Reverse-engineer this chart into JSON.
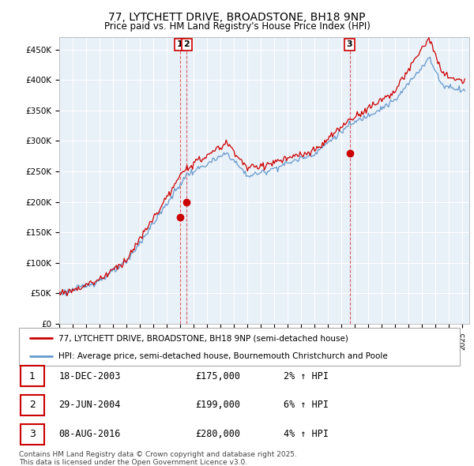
{
  "title": "77, LYTCHETT DRIVE, BROADSTONE, BH18 9NP",
  "subtitle": "Price paid vs. HM Land Registry's House Price Index (HPI)",
  "ylabel_ticks": [
    "£0",
    "£50K",
    "£100K",
    "£150K",
    "£200K",
    "£250K",
    "£300K",
    "£350K",
    "£400K",
    "£450K"
  ],
  "ytick_values": [
    0,
    50000,
    100000,
    150000,
    200000,
    250000,
    300000,
    350000,
    400000,
    450000
  ],
  "ylim": [
    0,
    470000
  ],
  "xlim_start": 1995.0,
  "xlim_end": 2025.5,
  "purchases": [
    {
      "year_num": 2003.97,
      "price": 175000,
      "label": "1",
      "date": "18-DEC-2003",
      "pct": "2%"
    },
    {
      "year_num": 2004.49,
      "price": 199000,
      "label": "2",
      "date": "29-JUN-2004",
      "pct": "6%"
    },
    {
      "year_num": 2016.6,
      "price": 280000,
      "label": "3",
      "date": "08-AUG-2016",
      "pct": "4%"
    }
  ],
  "legend_entries": [
    "77, LYTCHETT DRIVE, BROADSTONE, BH18 9NP (semi-detached house)",
    "HPI: Average price, semi-detached house, Bournemouth Christchurch and Poole"
  ],
  "footer_text": "Contains HM Land Registry data © Crown copyright and database right 2025.\nThis data is licensed under the Open Government Licence v3.0.",
  "table_rows": [
    {
      "num": "1",
      "date": "18-DEC-2003",
      "price": "£175,000",
      "change": "2% ↑ HPI"
    },
    {
      "num": "2",
      "date": "29-JUN-2004",
      "price": "£199,000",
      "change": "6% ↑ HPI"
    },
    {
      "num": "3",
      "date": "08-AUG-2016",
      "price": "£280,000",
      "change": "4% ↑ HPI"
    }
  ],
  "red_color": "#cc0000",
  "blue_color": "#6699cc",
  "bg_plot": "#e8f0f8",
  "bg_color": "#ffffff",
  "grid_color": "#ffffff"
}
